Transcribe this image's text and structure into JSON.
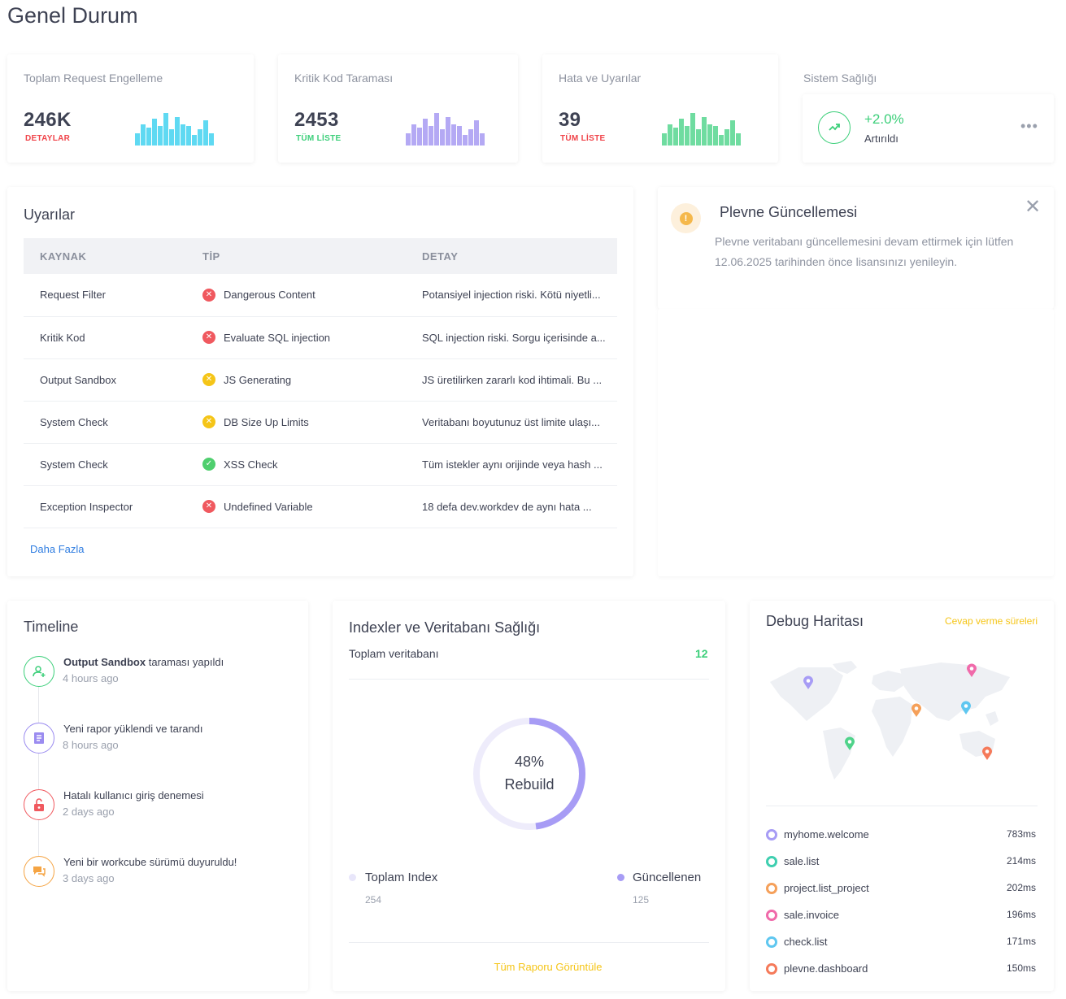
{
  "page": {
    "title": "Genel Durum"
  },
  "stats": [
    {
      "title": "Toplam Request Engelleme",
      "value": "246K",
      "link": "DETAYLAR",
      "link_color": "#f0444a",
      "bar_color": "#5fd9f2",
      "bars": [
        0.35,
        0.6,
        0.5,
        0.75,
        0.55,
        0.9,
        0.45,
        0.8,
        0.6,
        0.55,
        0.3,
        0.45,
        0.7,
        0.35
      ]
    },
    {
      "title": "Kritik Kod Taraması",
      "value": "2453",
      "link": "TÜM LİSTE",
      "link_color": "#3ccf7a",
      "bar_color": "#b4a9f4",
      "bars": [
        0.35,
        0.6,
        0.5,
        0.75,
        0.55,
        0.9,
        0.45,
        0.8,
        0.6,
        0.55,
        0.3,
        0.45,
        0.7,
        0.35
      ]
    },
    {
      "title": "Hata ve Uyarılar",
      "value": "39",
      "link": "TÜM LİSTE",
      "link_color": "#f0444a",
      "bar_color": "#6fdca0",
      "bars": [
        0.35,
        0.6,
        0.5,
        0.75,
        0.55,
        0.9,
        0.45,
        0.8,
        0.6,
        0.55,
        0.3,
        0.45,
        0.7,
        0.35
      ]
    }
  ],
  "health": {
    "title": "Sistem Sağlığı",
    "value": "+2.0%",
    "label": "Artırıldı",
    "icon": "trending-up-icon",
    "color": "#3ccf7a"
  },
  "alerts": {
    "title": "Uyarılar",
    "columns": [
      "KAYNAK",
      "TİP",
      "DETAY"
    ],
    "rows": [
      {
        "source": "Request Filter",
        "type": "Dangerous Content",
        "status": "error",
        "detail": "Potansiyel injection riski. Kötü niyetli..."
      },
      {
        "source": "Kritik Kod",
        "type": "Evaluate SQL injection",
        "status": "error",
        "detail": "SQL injection riski. Sorgu içerisinde a..."
      },
      {
        "source": "Output Sandbox",
        "type": "JS Generating",
        "status": "warning",
        "detail": "JS üretilirken zararlı kod ihtimali. Bu ..."
      },
      {
        "source": "System Check",
        "type": "DB Size Up Limits",
        "status": "warning",
        "detail": "Veritabanı boyutunuz üst limite ulaşı..."
      },
      {
        "source": "System Check",
        "type": "XSS Check",
        "status": "success",
        "detail": "Tüm istekler aynı orijinde veya hash ..."
      },
      {
        "source": "Exception Inspector",
        "type": "Undefined Variable",
        "status": "error",
        "detail": "18 defa dev.workdev de aynı hata ..."
      }
    ],
    "more_link": "Daha Fazla",
    "status_colors": {
      "error": "#f0595f",
      "warning": "#f5c518",
      "success": "#4fcf6e"
    }
  },
  "notification": {
    "title": "Plevne Güncellemesi",
    "body": "Plevne veritabanı güncellemesini devam ettirmek için lütfen 12.06.2025 tarihinden önce lisansınızı yenileyin.",
    "icon": "warning-icon"
  },
  "timeline": {
    "title": "Timeline",
    "items": [
      {
        "bold": "Output Sandbox",
        "text": " taraması yapıldı",
        "time": "4 hours ago",
        "icon": "user-add-icon",
        "color": "#3ccf7a"
      },
      {
        "bold": "",
        "text": "Yeni rapor yüklendi ve tarandı",
        "time": "8 hours ago",
        "icon": "document-icon",
        "color": "#9b8cf0"
      },
      {
        "bold": "",
        "text": "Hatalı kullanıcı giriş denemesi",
        "time": "2 days ago",
        "icon": "unlock-icon",
        "color": "#f0595f"
      },
      {
        "bold": "",
        "text": "Yeni bir workcube sürümü duyuruldu!",
        "time": "3 days ago",
        "icon": "chat-icon",
        "color": "#f5a443"
      }
    ]
  },
  "db_health": {
    "title": "Indexler ve Veritabanı Sağlığı",
    "total_label": "Toplam veritabanı",
    "total_value": "12",
    "percent": 48,
    "percent_label": "48%",
    "donut_label": "Rebuild",
    "legend": [
      {
        "label": "Toplam Index",
        "value": "254",
        "color": "#e8e6fa"
      },
      {
        "label": "Güncellenen",
        "value": "125",
        "color": "#a79cf5"
      }
    ],
    "report_link": "Tüm Raporu Görüntüle"
  },
  "debug_map": {
    "title": "Debug Haritası",
    "subtitle_link": "Cevap verme süreleri",
    "items": [
      {
        "name": "myhome.welcome",
        "ms": "783ms",
        "color": "#a79cf5"
      },
      {
        "name": "sale.list",
        "ms": "214ms",
        "color": "#3fcfb0"
      },
      {
        "name": "project.list_project",
        "ms": "202ms",
        "color": "#f5a05a"
      },
      {
        "name": "sale.invoice",
        "ms": "196ms",
        "color": "#f06aaa"
      },
      {
        "name": "check.list",
        "ms": "171ms",
        "color": "#5fc7f0"
      },
      {
        "name": "plevne.dashboard",
        "ms": "150ms",
        "color": "#f57a5a"
      }
    ]
  }
}
